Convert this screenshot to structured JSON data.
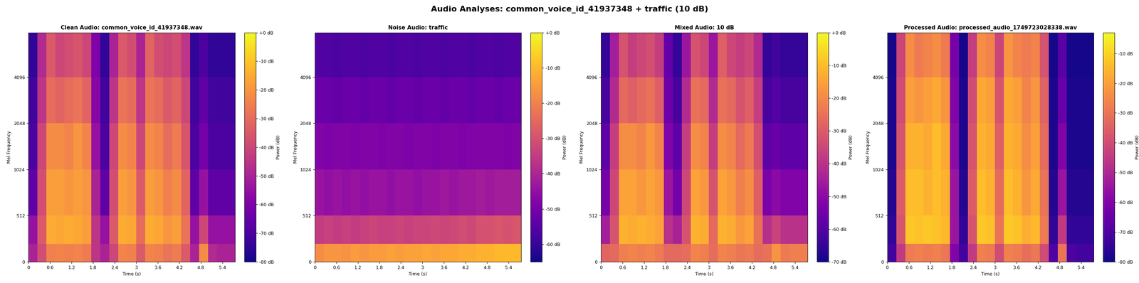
{
  "title": "Audio Analyses: common_voice_id_41937348 + traffic (10 dB)",
  "chart_data": [
    {
      "type": "heatmap",
      "title": "Clean Audio: common_voice_id_41937348.wav",
      "x_label": "Time (s)",
      "y_label": "Mel Frequency",
      "color": "plasma",
      "log": "y",
      "x": [
        0,
        0.25,
        0.5,
        0.75,
        1.0,
        1.25,
        1.5,
        1.75,
        2.0,
        2.25,
        2.5,
        2.75,
        3.0,
        3.25,
        3.5,
        3.75,
        4.0,
        4.25,
        4.5,
        4.75,
        5.0,
        5.25,
        5.5,
        5.75
      ],
      "y": [
        0,
        200,
        512,
        1024,
        2048,
        4096,
        8000
      ],
      "xlim": [
        0,
        5.75
      ],
      "xticks": [
        0,
        0.6,
        1.2,
        1.8,
        2.4,
        3,
        3.6,
        4.2,
        4.8,
        5.4
      ],
      "ylim": [
        0,
        8000
      ],
      "yticks": [
        0,
        512,
        1024,
        2048,
        4096
      ],
      "cells": [
        [
          -50,
          -38,
          -25,
          -24,
          -25,
          -24,
          -26,
          -45,
          -50,
          -40,
          -24,
          -25,
          -35,
          -24,
          -25,
          -28,
          -26,
          -35,
          -50,
          -22,
          -48,
          -50,
          -50
        ],
        [
          -55,
          -35,
          -15,
          -16,
          -15,
          -16,
          -18,
          -45,
          -55,
          -35,
          -15,
          -16,
          -30,
          -15,
          -16,
          -20,
          -18,
          -28,
          -55,
          -40,
          -55,
          -55,
          -55
        ],
        [
          -66,
          -38,
          -18,
          -18,
          -20,
          -18,
          -20,
          -50,
          -66,
          -38,
          -18,
          -20,
          -35,
          -18,
          -20,
          -25,
          -22,
          -32,
          -66,
          -55,
          -66,
          -66,
          -66
        ],
        [
          -70,
          -40,
          -22,
          -22,
          -24,
          -20,
          -24,
          -55,
          -70,
          -40,
          -22,
          -24,
          -40,
          -22,
          -24,
          -30,
          -26,
          -36,
          -70,
          -62,
          -70,
          -70,
          -70
        ],
        [
          -72,
          -45,
          -30,
          -32,
          -30,
          -28,
          -32,
          -58,
          -72,
          -45,
          -28,
          -30,
          -45,
          -28,
          -30,
          -35,
          -32,
          -40,
          -72,
          -66,
          -72,
          -72,
          -72
        ],
        [
          -75,
          -48,
          -35,
          -40,
          -38,
          -36,
          -40,
          -60,
          -75,
          -50,
          -35,
          -38,
          -50,
          -32,
          -38,
          -40,
          -38,
          -45,
          -75,
          -70,
          -75,
          -75,
          -75
        ]
      ],
      "colorbar": {
        "label": "Power (dB)",
        "range": [
          -80,
          0
        ],
        "ticks": [
          {
            "value": 0,
            "label": "+0 dB"
          },
          {
            "value": -10,
            "label": "-10 dB"
          },
          {
            "value": -20,
            "label": "-20 dB"
          },
          {
            "value": -30,
            "label": "-30 dB"
          },
          {
            "value": -40,
            "label": "-40 dB"
          },
          {
            "value": -50,
            "label": "-50 dB"
          },
          {
            "value": -60,
            "label": "-60 dB"
          },
          {
            "value": -70,
            "label": "-70 dB"
          },
          {
            "value": -80,
            "label": "-80 dB"
          }
        ]
      }
    },
    {
      "type": "heatmap",
      "title": "Noise Audio: traffic",
      "x_label": "Time (s)",
      "y_label": "Mel Frequency",
      "color": "plasma",
      "log": "y",
      "x": [
        0,
        0.25,
        0.5,
        0.75,
        1.0,
        1.25,
        1.5,
        1.75,
        2.0,
        2.25,
        2.5,
        2.75,
        3.0,
        3.25,
        3.5,
        3.75,
        4.0,
        4.25,
        4.5,
        4.75,
        5.0,
        5.25,
        5.5,
        5.75
      ],
      "y": [
        0,
        200,
        512,
        1024,
        2048,
        4096,
        8000
      ],
      "xlim": [
        0,
        5.75
      ],
      "xticks": [
        0,
        0.6,
        1.2,
        1.8,
        2.4,
        3,
        3.6,
        4.2,
        4.8,
        5.4
      ],
      "ylim": [
        0,
        8000
      ],
      "yticks": [
        0,
        512,
        1024,
        2048,
        4096
      ],
      "cells": [
        [
          -18,
          -16,
          -16,
          -17,
          -15,
          -16,
          -15,
          -15,
          -14,
          -15,
          -14,
          -14,
          -13,
          -14,
          -13,
          -13,
          -12,
          -12,
          -11,
          -11,
          -10,
          -10,
          -10
        ],
        [
          -35,
          -34,
          -35,
          -34,
          -35,
          -34,
          -33,
          -34,
          -34,
          -33,
          -34,
          -33,
          -33,
          -32,
          -33,
          -32,
          -31,
          -32,
          -30,
          -30,
          -29,
          -30,
          -29
        ],
        [
          -44,
          -45,
          -44,
          -45,
          -44,
          -45,
          -44,
          -44,
          -45,
          -44,
          -44,
          -45,
          -44,
          -44,
          -43,
          -44,
          -43,
          -43,
          -42,
          -43,
          -42,
          -42,
          -42
        ],
        [
          -48,
          -49,
          -48,
          -48,
          -49,
          -48,
          -48,
          -49,
          -48,
          -48,
          -49,
          -48,
          -48,
          -49,
          -48,
          -48,
          -49,
          -48,
          -48,
          -48,
          -48,
          -49,
          -48
        ],
        [
          -52,
          -52,
          -53,
          -52,
          -52,
          -53,
          -52,
          -52,
          -53,
          -52,
          -52,
          -53,
          -52,
          -52,
          -53,
          -52,
          -52,
          -53,
          -52,
          -52,
          -53,
          -52,
          -52
        ],
        [
          -56,
          -56,
          -57,
          -56,
          -56,
          -57,
          -56,
          -56,
          -57,
          -56,
          -56,
          -57,
          -56,
          -56,
          -57,
          -56,
          -56,
          -57,
          -56,
          -56,
          -57,
          -56,
          -56
        ]
      ],
      "colorbar": {
        "label": "Power (dB)",
        "range": [
          -65,
          0
        ],
        "ticks": [
          {
            "value": 0,
            "label": "+0 dB"
          },
          {
            "value": -10,
            "label": "-10 dB"
          },
          {
            "value": -20,
            "label": "-20 dB"
          },
          {
            "value": -30,
            "label": "-30 dB"
          },
          {
            "value": -40,
            "label": "-40 dB"
          },
          {
            "value": -50,
            "label": "-50 dB"
          },
          {
            "value": -60,
            "label": "-60 dB"
          }
        ]
      }
    },
    {
      "type": "heatmap",
      "title": "Mixed Audio: 10 dB",
      "x_label": "Time (s)",
      "y_label": "Mel Frequency",
      "color": "plasma",
      "log": "y",
      "x": [
        0,
        0.25,
        0.5,
        0.75,
        1.0,
        1.25,
        1.5,
        1.75,
        2.0,
        2.25,
        2.5,
        2.75,
        3.0,
        3.25,
        3.5,
        3.75,
        4.0,
        4.25,
        4.5,
        4.75,
        5.0,
        5.25,
        5.5,
        5.75
      ],
      "y": [
        0,
        200,
        512,
        1024,
        2048,
        4096,
        8000
      ],
      "xlim": [
        0,
        5.75
      ],
      "xticks": [
        0,
        0.6,
        1.2,
        1.8,
        2.4,
        3,
        3.6,
        4.2,
        4.8,
        5.4
      ],
      "ylim": [
        0,
        8000
      ],
      "yticks": [
        0,
        512,
        1024,
        2048,
        4096
      ],
      "cells": [
        [
          -28,
          -27,
          -22,
          -21,
          -22,
          -21,
          -23,
          -27,
          -27,
          -26,
          -21,
          -22,
          -26,
          -21,
          -22,
          -24,
          -23,
          -26,
          -25,
          -18,
          -23,
          -22,
          -22
        ],
        [
          -45,
          -32,
          -12,
          -13,
          -12,
          -13,
          -15,
          -40,
          -44,
          -32,
          -12,
          -13,
          -27,
          -12,
          -13,
          -17,
          -15,
          -25,
          -41,
          -36,
          -40,
          -40,
          -40
        ],
        [
          -54,
          -35,
          -15,
          -15,
          -17,
          -15,
          -17,
          -47,
          -54,
          -35,
          -15,
          -17,
          -32,
          -15,
          -17,
          -22,
          -19,
          -29,
          -53,
          -50,
          -52,
          -52,
          -52
        ],
        [
          -58,
          -37,
          -19,
          -19,
          -21,
          -17,
          -21,
          -52,
          -58,
          -37,
          -19,
          -21,
          -37,
          -19,
          -21,
          -27,
          -23,
          -33,
          -58,
          -56,
          -58,
          -58,
          -58
        ],
        [
          -62,
          -42,
          -27,
          -29,
          -27,
          -25,
          -29,
          -55,
          -62,
          -42,
          -25,
          -27,
          -42,
          -25,
          -27,
          -32,
          -29,
          -37,
          -62,
          -60,
          -62,
          -62,
          -62
        ],
        [
          -65,
          -45,
          -32,
          -37,
          -35,
          -33,
          -37,
          -57,
          -65,
          -47,
          -32,
          -35,
          -47,
          -29,
          -35,
          -37,
          -35,
          -42,
          -65,
          -63,
          -65,
          -65,
          -65
        ]
      ],
      "colorbar": {
        "label": "Power (dB)",
        "range": [
          -70,
          0
        ],
        "ticks": [
          {
            "value": 0,
            "label": "+0 dB"
          },
          {
            "value": -10,
            "label": "-10 dB"
          },
          {
            "value": -20,
            "label": "-20 dB"
          },
          {
            "value": -30,
            "label": "-30 dB"
          },
          {
            "value": -40,
            "label": "-40 dB"
          },
          {
            "value": -50,
            "label": "-50 dB"
          },
          {
            "value": -60,
            "label": "-60 dB"
          },
          {
            "value": -70,
            "label": "-70 dB"
          }
        ]
      }
    },
    {
      "type": "heatmap",
      "title": "Processed Audio: processed_audio_1749723028338.wav",
      "x_label": "Time (s)",
      "y_label": "Mel Frequency",
      "color": "plasma",
      "log": "y",
      "x": [
        0,
        0.25,
        0.5,
        0.75,
        1.0,
        1.25,
        1.5,
        1.75,
        2.0,
        2.25,
        2.5,
        2.75,
        3.0,
        3.25,
        3.5,
        3.75,
        4.0,
        4.25,
        4.5,
        4.75,
        5.0,
        5.25,
        5.5,
        5.75
      ],
      "y": [
        0,
        200,
        512,
        1024,
        2048,
        4096,
        8000
      ],
      "xlim": [
        0,
        5.75
      ],
      "xticks": [
        0,
        0.6,
        1.2,
        1.8,
        2.4,
        3,
        3.6,
        4.2,
        4.8,
        5.4
      ],
      "ylim": [
        0,
        8000
      ],
      "yticks": [
        0,
        512,
        1024,
        2048,
        4096
      ],
      "cells": [
        [
          -72,
          -45,
          -28,
          -27,
          -28,
          -27,
          -29,
          -60,
          -72,
          -45,
          -27,
          -28,
          -40,
          -27,
          -28,
          -31,
          -29,
          -40,
          -70,
          -30,
          -70,
          -72,
          -72
        ],
        [
          -75,
          -38,
          -12,
          -13,
          -12,
          -13,
          -15,
          -55,
          -75,
          -38,
          -12,
          -13,
          -30,
          -12,
          -13,
          -17,
          -15,
          -28,
          -75,
          -45,
          -75,
          -75,
          -75
        ],
        [
          -77,
          -36,
          -14,
          -14,
          -16,
          -14,
          -16,
          -55,
          -77,
          -36,
          -14,
          -16,
          -32,
          -14,
          -16,
          -22,
          -18,
          -30,
          -77,
          -55,
          -77,
          -77,
          -77
        ],
        [
          -78,
          -38,
          -16,
          -16,
          -18,
          -14,
          -18,
          -58,
          -78,
          -38,
          -16,
          -18,
          -35,
          -16,
          -18,
          -24,
          -20,
          -32,
          -78,
          -60,
          -78,
          -78,
          -78
        ],
        [
          -78,
          -40,
          -20,
          -22,
          -20,
          -18,
          -22,
          -60,
          -78,
          -40,
          -18,
          -20,
          -38,
          -18,
          -20,
          -26,
          -22,
          -34,
          -78,
          -65,
          -78,
          -78,
          -78
        ],
        [
          -79,
          -42,
          -24,
          -28,
          -26,
          -24,
          -28,
          -62,
          -79,
          -44,
          -24,
          -26,
          -42,
          -22,
          -26,
          -28,
          -26,
          -38,
          -79,
          -68,
          -79,
          -79,
          -79
        ]
      ],
      "colorbar": {
        "label": "Power (dB)",
        "range": [
          -80,
          -3
        ],
        "ticks": [
          {
            "value": -10,
            "label": "-10 dB"
          },
          {
            "value": -20,
            "label": "-20 dB"
          },
          {
            "value": -30,
            "label": "-30 dB"
          },
          {
            "value": -40,
            "label": "-40 dB"
          },
          {
            "value": -50,
            "label": "-50 dB"
          },
          {
            "value": -60,
            "label": "-60 dB"
          },
          {
            "value": -70,
            "label": "-70 dB"
          },
          {
            "value": -80,
            "label": "-80 dB"
          }
        ]
      }
    }
  ]
}
